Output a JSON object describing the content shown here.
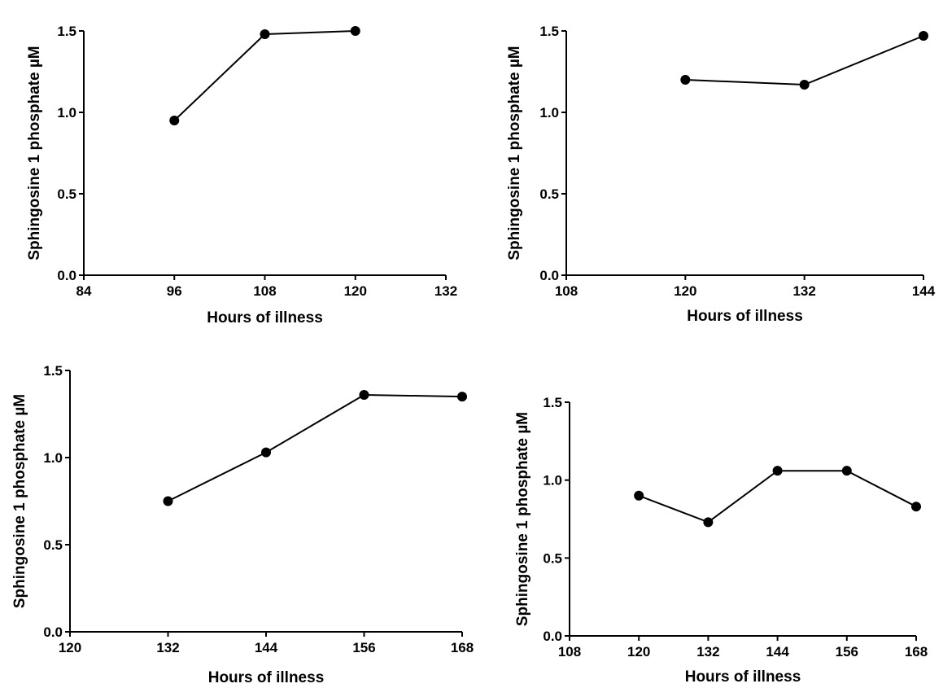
{
  "chart_data": [
    {
      "type": "line",
      "xlabel": "Hours of illness",
      "ylabel": "Sphingosine 1 phosphate µM",
      "xlim": [
        84,
        132
      ],
      "ylim": [
        0,
        1.5
      ],
      "xticks": [
        "84",
        "96",
        "108",
        "120",
        "132"
      ],
      "yticks": [
        "0.0",
        "0.5",
        "1.0",
        "1.5"
      ],
      "grid": false,
      "series": [
        {
          "x": [
            96,
            108,
            120
          ],
          "y": [
            0.95,
            1.48,
            1.5
          ]
        }
      ]
    },
    {
      "type": "line",
      "xlabel": "Hours of illness",
      "ylabel": "Sphingosine 1 phosphate µM",
      "xlim": [
        108,
        144
      ],
      "ylim": [
        0,
        1.5
      ],
      "xticks": [
        "108",
        "120",
        "132",
        "144"
      ],
      "yticks": [
        "0.0",
        "0.5",
        "1.0",
        "1.5"
      ],
      "grid": false,
      "series": [
        {
          "x": [
            120,
            132,
            144
          ],
          "y": [
            1.2,
            1.17,
            1.47
          ]
        }
      ]
    },
    {
      "type": "line",
      "xlabel": "Hours of illness",
      "ylabel": "Sphingosine 1 phosphate µM",
      "xlim": [
        120,
        168
      ],
      "ylim": [
        0,
        1.5
      ],
      "xticks": [
        "120",
        "132",
        "144",
        "156",
        "168"
      ],
      "yticks": [
        "0.0",
        "0.5",
        "1.0",
        "1.5"
      ],
      "grid": false,
      "series": [
        {
          "x": [
            132,
            144,
            156,
            168
          ],
          "y": [
            0.75,
            1.03,
            1.36,
            1.35
          ]
        }
      ]
    },
    {
      "type": "line",
      "xlabel": "Hours of illness",
      "ylabel": "Sphingosine 1 phosphate µM",
      "xlim": [
        108,
        168
      ],
      "ylim": [
        0,
        1.5
      ],
      "xticks": [
        "108",
        "120",
        "132",
        "144",
        "156",
        "168"
      ],
      "yticks": [
        "0.0",
        "0.5",
        "1.0",
        "1.5"
      ],
      "grid": false,
      "series": [
        {
          "x": [
            120,
            132,
            144,
            156,
            168
          ],
          "y": [
            0.9,
            0.73,
            1.06,
            1.06,
            0.83
          ]
        }
      ]
    }
  ]
}
